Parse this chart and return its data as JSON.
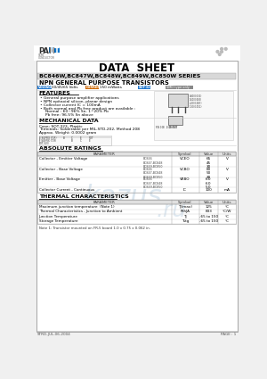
{
  "title": "DATA  SHEET",
  "series_title": "BC846W,BC847W,BC848W,BC849W,BC850W SERIES",
  "subtitle": "NPN GENERAL PURPOSE TRANSISTORS",
  "voltage_label": "VOLTAGE",
  "voltage_value": "30/45/65 Volts",
  "current_label": "CURRENT",
  "current_value": "150 mWatts",
  "package_label": "SOT-323",
  "smd_label": "SMD type only",
  "features_title": "FEATURES",
  "features": [
    "General purpose amplifier applications",
    "NPN epitaxial silicon, planar design",
    "Collector current IC = 100mA",
    "Both normal and Pb free product are available :",
    "  Normal : 60~96% Sn, 1~20% Pb",
    "  Pb free: 96.5% Sn above"
  ],
  "mech_title": "MECHANICAL DATA",
  "mech_lines": [
    "Case: SOT-323, Plastic",
    "Terminals: Solderable per MIL-STD-202, Method 208",
    "Approx. Weight: 0.0002 gram"
  ],
  "abs_title": "ABSOLUTE RATINGS",
  "thermal_title": "THERMAL CHARACTERISTICS",
  "note": "Note 1: Transistor mounted on FR-5 board 1.0 x 0.75 x 0.062 in.",
  "footer_left": "STRD-JUL-06-2004",
  "footer_right": "PAGE : 1",
  "bg_color": "#f0f0f0",
  "content_bg": "#ffffff",
  "blue_label": "#2277cc",
  "orange_label": "#cc6600",
  "gray_label": "#888888",
  "series_bar_color": "#d8d8d8",
  "table_header_color": "#e0e0e0",
  "watermark_color": "#b8cfe0",
  "logo_pan_color": "#333333",
  "logo_jit_color": "#1177cc",
  "dot_color": "#bbbbbb",
  "border_color": "#999999",
  "line_color": "#aaaaaa"
}
